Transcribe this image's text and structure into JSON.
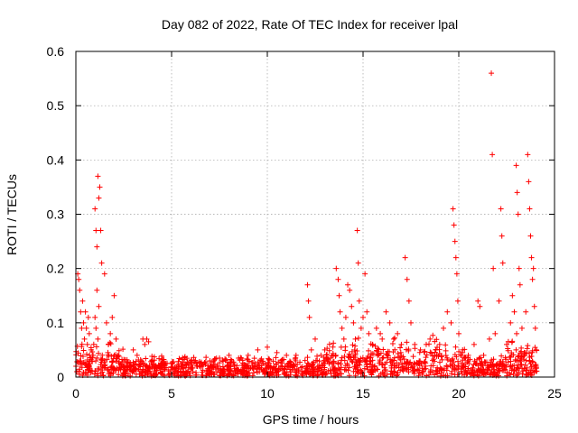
{
  "chart_data": {
    "type": "scatter",
    "title": "Day 082 of 2022, Rate Of TEC Index for receiver lpal",
    "xlabel": "GPS time / hours",
    "ylabel": "ROTI / TECUs",
    "xlim": [
      0,
      25
    ],
    "ylim": [
      0,
      0.6
    ],
    "xticks": [
      0,
      5,
      10,
      15,
      20,
      25
    ],
    "yticks": [
      0,
      0.1,
      0.2,
      0.3,
      0.4,
      0.5,
      0.6
    ],
    "ytick_labels": [
      "0",
      "0.1",
      "0.2",
      "0.3",
      "0.4",
      "0.5",
      "0.6"
    ],
    "grid": true,
    "marker": "+",
    "color": "#ff0000",
    "series": [
      {
        "points": [
          [
            0.05,
            0.01
          ],
          [
            0.1,
            0.19
          ],
          [
            0.15,
            0.18
          ],
          [
            0.2,
            0.16
          ],
          [
            0.25,
            0.12
          ],
          [
            0.3,
            0.09
          ],
          [
            0.35,
            0.14
          ],
          [
            0.4,
            0.1
          ],
          [
            0.45,
            0.07
          ],
          [
            0.5,
            0.12
          ],
          [
            0.55,
            0.09
          ],
          [
            0.6,
            0.06
          ],
          [
            0.65,
            0.11
          ],
          [
            0.7,
            0.08
          ],
          [
            0.8,
            0.05
          ],
          [
            0.9,
            0.04
          ],
          [
            1.0,
            0.31
          ],
          [
            1.05,
            0.27
          ],
          [
            1.1,
            0.24
          ],
          [
            1.15,
            0.37
          ],
          [
            1.2,
            0.33
          ],
          [
            1.25,
            0.35
          ],
          [
            1.3,
            0.27
          ],
          [
            1.35,
            0.21
          ],
          [
            1.1,
            0.16
          ],
          [
            1.2,
            0.13
          ],
          [
            1.0,
            0.11
          ],
          [
            1.05,
            0.09
          ],
          [
            1.15,
            0.07
          ],
          [
            1.5,
            0.19
          ],
          [
            1.6,
            0.1
          ],
          [
            1.7,
            0.06
          ],
          [
            1.8,
            0.08
          ],
          [
            1.9,
            0.11
          ],
          [
            2.0,
            0.15
          ],
          [
            2.1,
            0.07
          ],
          [
            2.2,
            0.04
          ],
          [
            3.0,
            0.05
          ],
          [
            3.2,
            0.04
          ],
          [
            3.5,
            0.07
          ],
          [
            3.6,
            0.06
          ],
          [
            3.7,
            0.07
          ],
          [
            3.8,
            0.065
          ],
          [
            4.0,
            0.03
          ],
          [
            4.5,
            0.03
          ],
          [
            5.0,
            0.025
          ],
          [
            5.5,
            0.02
          ],
          [
            6.0,
            0.02
          ],
          [
            6.5,
            0.025
          ],
          [
            7.0,
            0.03
          ],
          [
            7.5,
            0.035
          ],
          [
            8.0,
            0.04
          ],
          [
            8.5,
            0.035
          ],
          [
            9.0,
            0.04
          ],
          [
            9.5,
            0.05
          ],
          [
            10.0,
            0.055
          ],
          [
            10.5,
            0.045
          ],
          [
            11.0,
            0.04
          ],
          [
            11.5,
            0.04
          ],
          [
            12.1,
            0.17
          ],
          [
            12.15,
            0.14
          ],
          [
            12.2,
            0.11
          ],
          [
            12.3,
            0.05
          ],
          [
            12.5,
            0.07
          ],
          [
            12.8,
            0.04
          ],
          [
            13.0,
            0.05
          ],
          [
            13.6,
            0.2
          ],
          [
            13.7,
            0.18
          ],
          [
            13.75,
            0.15
          ],
          [
            13.8,
            0.12
          ],
          [
            13.9,
            0.09
          ],
          [
            14.0,
            0.07
          ],
          [
            14.1,
            0.11
          ],
          [
            14.2,
            0.17
          ],
          [
            14.3,
            0.16
          ],
          [
            14.4,
            0.13
          ],
          [
            14.5,
            0.1
          ],
          [
            14.6,
            0.07
          ],
          [
            14.7,
            0.27
          ],
          [
            14.75,
            0.21
          ],
          [
            14.8,
            0.14
          ],
          [
            14.9,
            0.09
          ],
          [
            15.0,
            0.11
          ],
          [
            15.1,
            0.19
          ],
          [
            15.2,
            0.12
          ],
          [
            15.3,
            0.08
          ],
          [
            15.5,
            0.06
          ],
          [
            15.7,
            0.09
          ],
          [
            15.9,
            0.08
          ],
          [
            16.0,
            0.07
          ],
          [
            16.2,
            0.12
          ],
          [
            16.4,
            0.1
          ],
          [
            16.6,
            0.07
          ],
          [
            16.8,
            0.08
          ],
          [
            17.0,
            0.06
          ],
          [
            17.2,
            0.22
          ],
          [
            17.3,
            0.18
          ],
          [
            17.4,
            0.14
          ],
          [
            17.5,
            0.1
          ],
          [
            17.7,
            0.06
          ],
          [
            18.0,
            0.05
          ],
          [
            18.3,
            0.06
          ],
          [
            18.5,
            0.07
          ],
          [
            18.8,
            0.05
          ],
          [
            19.0,
            0.06
          ],
          [
            19.2,
            0.09
          ],
          [
            19.4,
            0.12
          ],
          [
            19.6,
            0.1
          ],
          [
            19.7,
            0.31
          ],
          [
            19.75,
            0.28
          ],
          [
            19.8,
            0.25
          ],
          [
            19.85,
            0.22
          ],
          [
            19.9,
            0.19
          ],
          [
            19.95,
            0.14
          ],
          [
            20.0,
            0.08
          ],
          [
            20.2,
            0.05
          ],
          [
            20.5,
            0.04
          ],
          [
            20.8,
            0.06
          ],
          [
            21.0,
            0.14
          ],
          [
            21.1,
            0.13
          ],
          [
            21.3,
            0.04
          ],
          [
            21.6,
            0.07
          ],
          [
            21.7,
            0.56
          ],
          [
            21.75,
            0.41
          ],
          [
            21.8,
            0.2
          ],
          [
            21.9,
            0.08
          ],
          [
            22.1,
            0.14
          ],
          [
            22.2,
            0.31
          ],
          [
            22.25,
            0.26
          ],
          [
            22.3,
            0.21
          ],
          [
            22.5,
            0.06
          ],
          [
            22.7,
            0.1
          ],
          [
            22.8,
            0.15
          ],
          [
            22.9,
            0.12
          ],
          [
            23.0,
            0.39
          ],
          [
            23.05,
            0.34
          ],
          [
            23.1,
            0.3
          ],
          [
            23.15,
            0.2
          ],
          [
            23.2,
            0.17
          ],
          [
            23.3,
            0.09
          ],
          [
            23.5,
            0.12
          ],
          [
            23.6,
            0.41
          ],
          [
            23.65,
            0.36
          ],
          [
            23.7,
            0.31
          ],
          [
            23.75,
            0.26
          ],
          [
            23.8,
            0.22
          ],
          [
            23.85,
            0.18
          ],
          [
            23.9,
            0.2
          ],
          [
            23.95,
            0.13
          ],
          [
            24.0,
            0.09
          ],
          [
            24.05,
            0.05
          ]
        ]
      }
    ]
  }
}
